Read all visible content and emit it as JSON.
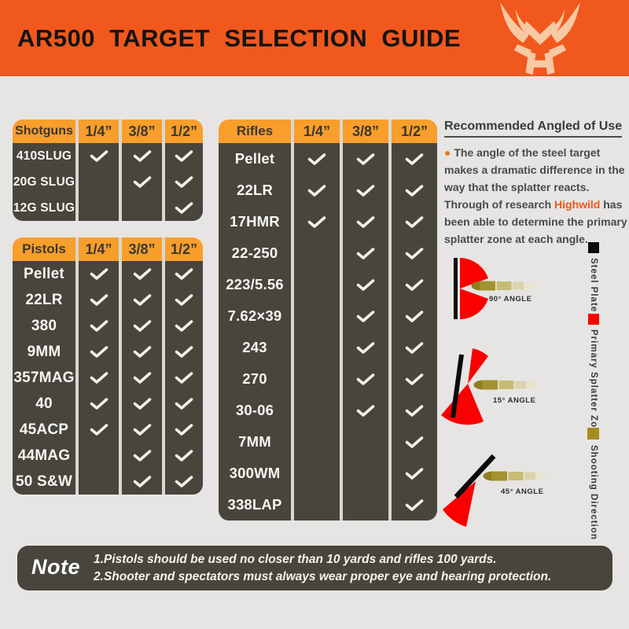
{
  "header": {
    "title": "AR500  TARGET  SELECTION  GUIDE",
    "logo": "highwild-deer-antlers-logo"
  },
  "tables": [
    {
      "title": "Shotguns",
      "columns": [
        "1/4”",
        "3/8”",
        "1/2”"
      ],
      "rows": [
        {
          "label": "410SLUG",
          "checks": [
            1,
            1,
            1
          ]
        },
        {
          "label": "20G SLUG",
          "checks": [
            0,
            1,
            1
          ]
        },
        {
          "label": "12G SLUG",
          "checks": [
            0,
            0,
            1
          ]
        }
      ]
    },
    {
      "title": "Pistols",
      "columns": [
        "1/4”",
        "3/8”",
        "1/2”"
      ],
      "rows": [
        {
          "label": "Pellet",
          "checks": [
            1,
            1,
            1
          ]
        },
        {
          "label": "22LR",
          "checks": [
            1,
            1,
            1
          ]
        },
        {
          "label": "380",
          "checks": [
            1,
            1,
            1
          ]
        },
        {
          "label": "9MM",
          "checks": [
            1,
            1,
            1
          ]
        },
        {
          "label": "357MAG",
          "checks": [
            1,
            1,
            1
          ]
        },
        {
          "label": "40",
          "checks": [
            1,
            1,
            1
          ]
        },
        {
          "label": "45ACP",
          "checks": [
            1,
            1,
            1
          ]
        },
        {
          "label": "44MAG",
          "checks": [
            0,
            1,
            1
          ]
        },
        {
          "label": "50 S&W",
          "checks": [
            0,
            1,
            1
          ]
        }
      ]
    },
    {
      "title": "Rifles",
      "columns": [
        "1/4”",
        "3/8”",
        "1/2”"
      ],
      "rows": [
        {
          "label": "Pellet",
          "checks": [
            1,
            1,
            1
          ]
        },
        {
          "label": "22LR",
          "checks": [
            1,
            1,
            1
          ]
        },
        {
          "label": "17HMR",
          "checks": [
            1,
            1,
            1
          ]
        },
        {
          "label": "22-250",
          "checks": [
            0,
            1,
            1
          ]
        },
        {
          "label": "223/5.56",
          "checks": [
            0,
            1,
            1
          ]
        },
        {
          "label": "7.62×39",
          "checks": [
            0,
            1,
            1
          ]
        },
        {
          "label": "243",
          "checks": [
            0,
            1,
            1
          ]
        },
        {
          "label": "270",
          "checks": [
            0,
            1,
            1
          ]
        },
        {
          "label": "30-06",
          "checks": [
            0,
            1,
            1
          ]
        },
        {
          "label": "7MM",
          "checks": [
            0,
            0,
            1
          ]
        },
        {
          "label": "300WM",
          "checks": [
            0,
            0,
            1
          ]
        },
        {
          "label": "338LAP",
          "checks": [
            0,
            0,
            1
          ]
        }
      ]
    }
  ],
  "recommendation": {
    "heading": "Recommended Angled of Use",
    "bullet_icon": "●",
    "body_before": " The angle of the steel target makes a dramatic difference in the way that the splatter reacts. Through of research ",
    "brand": "Highwild",
    "body_after": " has been able to determine the primary splatter zone at each angle."
  },
  "diagrams": [
    {
      "label": "90° ANGLE"
    },
    {
      "label": "15° ANGLE"
    },
    {
      "label": "45° ANGLE"
    }
  ],
  "legend": [
    {
      "label": "Steel Plate",
      "color": "#0B0B0B"
    },
    {
      "label": "Primary Splatter Zone",
      "color": "#FA0000"
    },
    {
      "label": "Shooting Direction",
      "color": "#A68B1D"
    }
  ],
  "note": {
    "title": "Note",
    "lines": [
      "1.Pistols should be used no closer than 10 yards and rifles 100 yards.",
      "2.Shooter and spectators must always wear proper eye and hearing protection."
    ]
  },
  "colors": {
    "header_orange": "#F1581D",
    "table_header_orange": "#F89E2B",
    "table_dark": "#47453C",
    "page_background": "#E6E5E3",
    "splatter_red": "#FA0000",
    "bullet_gold": "#A3922F",
    "logo_peach": "#F8C9A2",
    "check_white": "#F2F0E9"
  }
}
